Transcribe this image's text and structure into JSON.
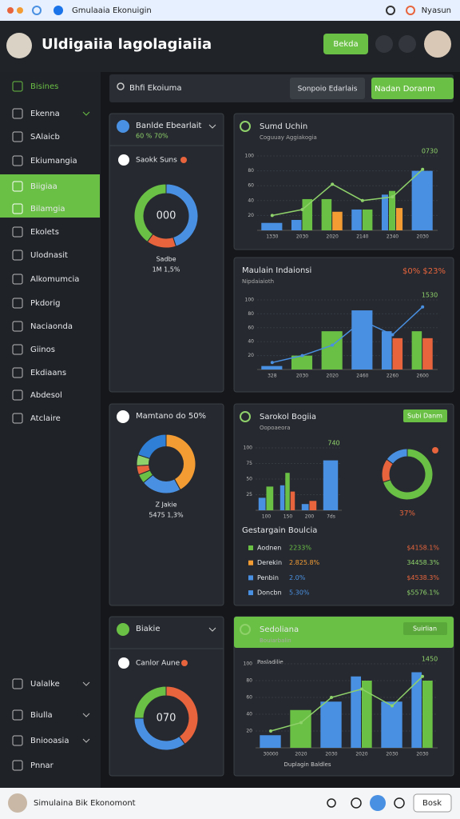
{
  "window": {
    "title": "Gmulaaia Ekonuigin",
    "user": "Nyasun"
  },
  "header": {
    "title": "Uldigaiia lagolagiaiia",
    "button": "Bekda"
  },
  "sidebar": {
    "items": [
      "Bisines",
      "Ekenna",
      "SAlaicb",
      "Ekiumangia",
      "Biigiaa",
      "Bilamgia",
      "Ekolets",
      "Ulodnasit",
      "Alkomumcia",
      "Pkdorig",
      "Naciaonda",
      "Giinos",
      "Ekdiaans",
      "Abdesol",
      "Atclaire"
    ],
    "active": [
      4,
      5
    ],
    "bottom": [
      "Ualalke",
      "Biulla",
      "Bniooasia",
      "Pnnar"
    ]
  },
  "search": {
    "placeholder": "Bhfi Ekoiuma",
    "button": "Sonpoio Edarlais",
    "action": "Nadan Doranm"
  },
  "donut_cards": [
    {
      "type": "donut",
      "title": "Banlde Ebearlait",
      "subtitle": "60 % 70%",
      "item": "Saokk Suns",
      "center": "000",
      "values": [
        45,
        15,
        40
      ],
      "colors": [
        "#4a90e2",
        "#e8643c",
        "#6abf45"
      ],
      "caption": "Sadbe",
      "caption2": "1M 1,5%"
    },
    {
      "type": "pie",
      "title": "Mamtano do 50%",
      "values": [
        42,
        22,
        5,
        5,
        6,
        20
      ],
      "colors": [
        "#f39c34",
        "#4a90e2",
        "#6abf45",
        "#e8643c",
        "#8fd16a",
        "#2f7fd6"
      ],
      "caption": "Z Jakie",
      "caption2": "5475 1,3%"
    },
    {
      "type": "donut",
      "title": "Biakie",
      "item": "Canlor Aune",
      "center": "070",
      "values": [
        40,
        35,
        25
      ],
      "colors": [
        "#e8643c",
        "#4a90e2",
        "#6abf45"
      ]
    }
  ],
  "bar_cards": [
    {
      "type": "bar",
      "title": "Sumd Uchin",
      "subtitle": "Coguuay Aggiakogia",
      "annotation": "0730",
      "categories": [
        "1330",
        "2030",
        "2020",
        "2140",
        "2340",
        "2030"
      ],
      "series": [
        {
          "color": "#4a90e2",
          "values": [
            10,
            14,
            null,
            28,
            48,
            80
          ]
        },
        {
          "color": "#6abf45",
          "values": [
            null,
            42,
            42,
            28,
            53,
            null
          ]
        },
        {
          "color": "#f39c34",
          "values": [
            null,
            null,
            25,
            null,
            30,
            null
          ]
        }
      ],
      "line": {
        "color": "#8fd16a",
        "values": [
          20,
          28,
          62,
          40,
          45,
          82
        ]
      },
      "ylim": [
        0,
        100
      ],
      "yticks": [
        20,
        40,
        60,
        80,
        100
      ]
    },
    {
      "type": "bar",
      "title": "Maulain Indaionsi",
      "subtitle": "Nipdaiaioth",
      "badge": "$0% $23%",
      "annotation": "1530",
      "categories": [
        "328",
        "2030",
        "2020",
        "2460",
        "2260",
        "2600"
      ],
      "series": [
        {
          "color": "#4a90e2",
          "values": [
            5,
            null,
            null,
            85,
            55,
            null
          ]
        },
        {
          "color": "#6abf45",
          "values": [
            null,
            20,
            55,
            null,
            null,
            55
          ]
        },
        {
          "color": "#e8643c",
          "values": [
            null,
            null,
            null,
            null,
            45,
            45
          ]
        }
      ],
      "line": {
        "color": "#4a90e2",
        "values": [
          10,
          20,
          35,
          70,
          50,
          90
        ]
      },
      "ylim": [
        0,
        100
      ],
      "yticks": [
        20,
        40,
        60,
        80,
        100
      ]
    },
    {
      "type": "bar",
      "title": "Sarokol Bogiia",
      "subtitle": "Oopoaeora",
      "button": "Subi Danm",
      "annotation": "740",
      "categories": [
        "100",
        "150",
        "200",
        "7ds"
      ],
      "series": [
        {
          "color": "#4a90e2",
          "values": [
            20,
            40,
            10,
            80
          ]
        },
        {
          "color": "#6abf45",
          "values": [
            38,
            60,
            null,
            null
          ]
        },
        {
          "color": "#e8643c",
          "values": [
            null,
            30,
            15,
            null
          ]
        }
      ],
      "ylim": [
        0,
        100
      ],
      "yticks": [
        25,
        50,
        75,
        100
      ],
      "donut": {
        "values": [
          70,
          15,
          15
        ],
        "colors": [
          "#6abf45",
          "#e8643c",
          "#4a90e2"
        ],
        "label": "37%"
      },
      "legend": {
        "title": "Gestargain Boulcia",
        "rows": [
          {
            "name": "Aodnen",
            "share": "2233%",
            "amount": "$4158.1%",
            "color": "#6abf45"
          },
          {
            "name": "Derekin",
            "share": "2.825.8%",
            "amount": "34458.3%",
            "color": "#f39c34"
          },
          {
            "name": "Penbin",
            "share": "2.0%",
            "amount": "$4538.3%",
            "color": "#4a90e2"
          },
          {
            "name": "Doncbn",
            "share": "5.30%",
            "amount": "$5576.1%",
            "color": "#4a90e2"
          }
        ]
      }
    },
    {
      "type": "bar",
      "title": "Sedoliana",
      "subtitle": "Bouiarbalin",
      "button": "Suirlian",
      "axis_title": "Pasladilie",
      "x_title": "Duplagin Baldles",
      "annotation": "1450",
      "categories": [
        "30000",
        "2020",
        "2030",
        "2020",
        "2030",
        "2030"
      ],
      "series": [
        {
          "color": "#4a90e2",
          "values": [
            15,
            null,
            55,
            85,
            55,
            90
          ]
        },
        {
          "color": "#6abf45",
          "values": [
            null,
            45,
            null,
            80,
            null,
            80
          ]
        }
      ],
      "line": {
        "color": "#8fd16a",
        "values": [
          20,
          30,
          60,
          70,
          50,
          85
        ]
      },
      "ylim": [
        0,
        100
      ],
      "yticks": [
        20,
        40,
        60,
        80,
        100
      ]
    }
  ],
  "footer": {
    "text": "Simulaina Bik Ekonomont",
    "button": "Bosk"
  }
}
